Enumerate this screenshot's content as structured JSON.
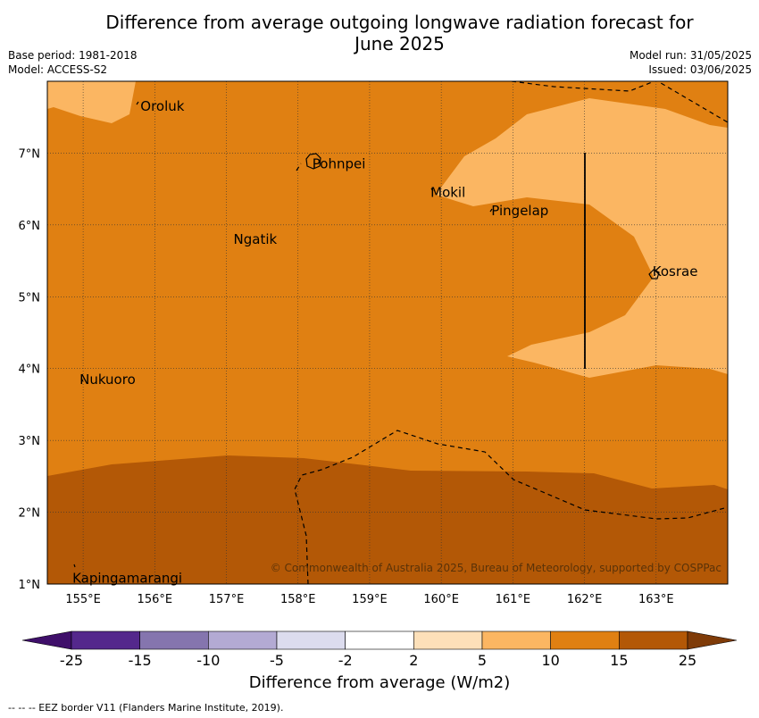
{
  "title_line1": "Difference from average outgoing longwave radiation forecast for",
  "title_line2": "June 2025",
  "base_period": "Base period: 1981-2018",
  "model": "Model: ACCESS-S2",
  "model_run": "Model run: 31/05/2025",
  "issued": "Issued: 03/06/2025",
  "map": {
    "lon_range": [
      154.5,
      164.0
    ],
    "lat_range": [
      1.0,
      8.0
    ],
    "x_ticks": [
      {
        "value": 155,
        "label": "155°E"
      },
      {
        "value": 156,
        "label": "156°E"
      },
      {
        "value": 157,
        "label": "157°E"
      },
      {
        "value": 158,
        "label": "158°E"
      },
      {
        "value": 159,
        "label": "159°E"
      },
      {
        "value": 160,
        "label": "160°E"
      },
      {
        "value": 161,
        "label": "161°E"
      },
      {
        "value": 162,
        "label": "162°E"
      },
      {
        "value": 163,
        "label": "163°E"
      }
    ],
    "y_ticks": [
      {
        "value": 1,
        "label": "1°N"
      },
      {
        "value": 2,
        "label": "2°N"
      },
      {
        "value": 3,
        "label": "3°N"
      },
      {
        "value": 4,
        "label": "4°N"
      },
      {
        "value": 5,
        "label": "5°N"
      },
      {
        "value": 6,
        "label": "6°N"
      },
      {
        "value": 7,
        "label": "7°N"
      }
    ],
    "places": [
      {
        "name": "Oroluk",
        "lon": 155.8,
        "lat": 7.65
      },
      {
        "name": "Pohnpei",
        "lon": 158.2,
        "lat": 6.85
      },
      {
        "name": "Mokil",
        "lon": 159.85,
        "lat": 6.45
      },
      {
        "name": "Pingelap",
        "lon": 160.7,
        "lat": 6.2
      },
      {
        "name": "Ngatik",
        "lon": 157.1,
        "lat": 5.8
      },
      {
        "name": "Kosrae",
        "lon": 162.95,
        "lat": 5.35
      },
      {
        "name": "Nukuoro",
        "lon": 154.95,
        "lat": 3.85
      },
      {
        "name": "Kapingamarangi",
        "lon": 154.85,
        "lat": 1.08
      }
    ],
    "copyright": "© Commonwealth of Australia 2025, Bureau of Meteorology, supported by COSPPac"
  },
  "colorbar": {
    "colors": [
      "#3f0f6a",
      "#54288c",
      "#8575ae",
      "#b3aad3",
      "#dcdcee",
      "#ffffff",
      "#fde0b9",
      "#fbb662",
      "#e08012",
      "#b35806",
      "#7f3b08"
    ],
    "labels": [
      "-25",
      "-15",
      "-10",
      "-5",
      "-2",
      "2",
      "5",
      "10",
      "15",
      "25"
    ],
    "title": "Difference from average (W/m2)"
  },
  "eez_note": "--  --  -- EEZ border V11 (Flanders Marine Institute, 2019)."
}
